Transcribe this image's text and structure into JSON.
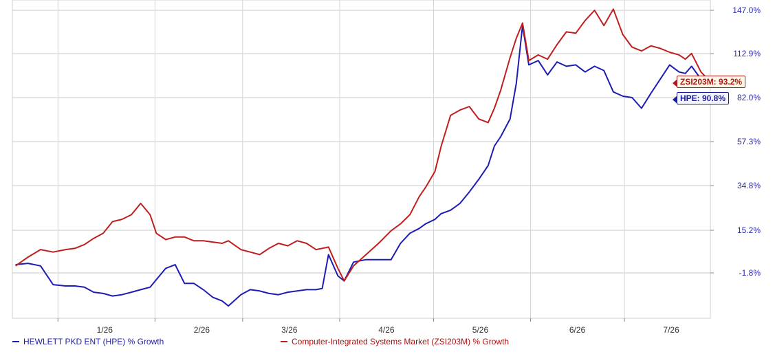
{
  "chart_data": {
    "type": "line",
    "x_start": "2025-12-17",
    "x_end": "2026-07-28",
    "xticks": [
      {
        "date": "2026-01-01",
        "label": "1/26"
      },
      {
        "date": "2026-02-01",
        "label": "2/26"
      },
      {
        "date": "2026-03-01",
        "label": "3/26"
      },
      {
        "date": "2026-04-01",
        "label": "4/26"
      },
      {
        "date": "2026-05-01",
        "label": "5/26"
      },
      {
        "date": "2026-06-01",
        "label": "6/26"
      },
      {
        "date": "2026-07-01",
        "label": "7/26"
      }
    ],
    "yticks": [
      {
        "value": -1.8,
        "label": "-1.8%"
      },
      {
        "value": 15.2,
        "label": "15.2%"
      },
      {
        "value": 34.8,
        "label": "34.8%"
      },
      {
        "value": 57.3,
        "label": "57.3%"
      },
      {
        "value": 82.0,
        "label": "82.0%"
      },
      {
        "value": 112.9,
        "label": "112.9%"
      },
      {
        "value": 147.0,
        "label": "147.0%"
      }
    ],
    "grid": true,
    "series": [
      {
        "name": "HEWLETT PKD ENT (HPE) % Growth",
        "ticker": "HPE",
        "color": "#1c1cb4",
        "end_label": "HPE: 90.8%",
        "points": [
          [
            "2025-12-18",
            1.5
          ],
          [
            "2025-12-22",
            2.0
          ],
          [
            "2025-12-26",
            1.0
          ],
          [
            "2025-12-30",
            -6.5
          ],
          [
            "2026-01-03",
            -7.0
          ],
          [
            "2026-01-06",
            -7.0
          ],
          [
            "2026-01-09",
            -7.5
          ],
          [
            "2026-01-12",
            -9.5
          ],
          [
            "2026-01-15",
            -10.0
          ],
          [
            "2026-01-18",
            -11.0
          ],
          [
            "2026-01-21",
            -10.5
          ],
          [
            "2026-01-24",
            -9.5
          ],
          [
            "2026-01-27",
            -8.5
          ],
          [
            "2026-01-30",
            -7.5
          ],
          [
            "2026-02-01",
            -4.5
          ],
          [
            "2026-02-04",
            0.0
          ],
          [
            "2026-02-07",
            1.5
          ],
          [
            "2026-02-10",
            -6.0
          ],
          [
            "2026-02-13",
            -6.0
          ],
          [
            "2026-02-16",
            -8.5
          ],
          [
            "2026-02-19",
            -11.5
          ],
          [
            "2026-02-22",
            -13.0
          ],
          [
            "2026-02-24",
            -15.0
          ],
          [
            "2026-02-28",
            -10.5
          ],
          [
            "2026-03-03",
            -8.5
          ],
          [
            "2026-03-06",
            -9.0
          ],
          [
            "2026-03-09",
            -10.0
          ],
          [
            "2026-03-12",
            -10.5
          ],
          [
            "2026-03-15",
            -9.5
          ],
          [
            "2026-03-18",
            -9.0
          ],
          [
            "2026-03-21",
            -8.5
          ],
          [
            "2026-03-24",
            -8.5
          ],
          [
            "2026-03-26",
            -8.0
          ],
          [
            "2026-03-28",
            5.5
          ],
          [
            "2026-03-31",
            -3.0
          ],
          [
            "2026-04-02",
            -5.0
          ],
          [
            "2026-04-05",
            2.5
          ],
          [
            "2026-04-09",
            3.5
          ],
          [
            "2026-04-13",
            3.5
          ],
          [
            "2026-04-17",
            3.5
          ],
          [
            "2026-04-20",
            10.0
          ],
          [
            "2026-04-23",
            14.0
          ],
          [
            "2026-04-26",
            16.0
          ],
          [
            "2026-04-28",
            18.0
          ],
          [
            "2026-05-01",
            20.0
          ],
          [
            "2026-05-03",
            22.5
          ],
          [
            "2026-05-06",
            24.0
          ],
          [
            "2026-05-09",
            27.0
          ],
          [
            "2026-05-12",
            32.0
          ],
          [
            "2026-05-15",
            38.0
          ],
          [
            "2026-05-18",
            45.0
          ],
          [
            "2026-05-20",
            55.0
          ],
          [
            "2026-05-22",
            60.0
          ],
          [
            "2026-05-25",
            70.0
          ],
          [
            "2026-05-27",
            92.0
          ],
          [
            "2026-05-29",
            135.0
          ],
          [
            "2026-05-31",
            105.0
          ],
          [
            "2026-06-03",
            108.0
          ],
          [
            "2026-06-06",
            98.0
          ],
          [
            "2026-06-09",
            107.0
          ],
          [
            "2026-06-12",
            104.0
          ],
          [
            "2026-06-15",
            105.0
          ],
          [
            "2026-06-18",
            100.0
          ],
          [
            "2026-06-21",
            104.0
          ],
          [
            "2026-06-24",
            101.0
          ],
          [
            "2026-06-27",
            86.0
          ],
          [
            "2026-06-30",
            83.0
          ],
          [
            "2026-07-03",
            82.0
          ],
          [
            "2026-07-06",
            76.0
          ],
          [
            "2026-07-09",
            85.0
          ],
          [
            "2026-07-12",
            95.0
          ],
          [
            "2026-07-15",
            105.0
          ],
          [
            "2026-07-18",
            100.0
          ],
          [
            "2026-07-20",
            99.0
          ],
          [
            "2026-07-22",
            104.0
          ],
          [
            "2026-07-25",
            95.0
          ],
          [
            "2026-07-28",
            90.8
          ]
        ]
      },
      {
        "name": "Computer-Integrated Systems Market (ZSI203M) % Growth",
        "ticker": "ZSI203M",
        "color": "#c01e1e",
        "end_label": "ZSI203M: 93.2%",
        "points": [
          [
            "2025-12-18",
            1.0
          ],
          [
            "2025-12-22",
            4.5
          ],
          [
            "2025-12-26",
            7.5
          ],
          [
            "2025-12-30",
            6.5
          ],
          [
            "2026-01-03",
            7.5
          ],
          [
            "2026-01-06",
            8.0
          ],
          [
            "2026-01-09",
            9.5
          ],
          [
            "2026-01-12",
            12.0
          ],
          [
            "2026-01-15",
            14.0
          ],
          [
            "2026-01-18",
            19.0
          ],
          [
            "2026-01-21",
            20.0
          ],
          [
            "2026-01-24",
            22.0
          ],
          [
            "2026-01-27",
            27.0
          ],
          [
            "2026-01-30",
            22.0
          ],
          [
            "2026-02-01",
            14.0
          ],
          [
            "2026-02-04",
            11.5
          ],
          [
            "2026-02-07",
            12.5
          ],
          [
            "2026-02-10",
            12.5
          ],
          [
            "2026-02-13",
            11.0
          ],
          [
            "2026-02-16",
            11.0
          ],
          [
            "2026-02-19",
            10.5
          ],
          [
            "2026-02-22",
            10.0
          ],
          [
            "2026-02-24",
            11.0
          ],
          [
            "2026-02-28",
            7.5
          ],
          [
            "2026-03-03",
            6.5
          ],
          [
            "2026-03-06",
            5.5
          ],
          [
            "2026-03-09",
            8.0
          ],
          [
            "2026-03-12",
            10.0
          ],
          [
            "2026-03-15",
            9.0
          ],
          [
            "2026-03-18",
            11.0
          ],
          [
            "2026-03-21",
            10.0
          ],
          [
            "2026-03-24",
            7.5
          ],
          [
            "2026-03-26",
            8.0
          ],
          [
            "2026-03-28",
            8.5
          ],
          [
            "2026-03-31",
            0.0
          ],
          [
            "2026-04-02",
            -5.0
          ],
          [
            "2026-04-05",
            1.0
          ],
          [
            "2026-04-09",
            5.5
          ],
          [
            "2026-04-13",
            10.0
          ],
          [
            "2026-04-17",
            15.0
          ],
          [
            "2026-04-20",
            18.0
          ],
          [
            "2026-04-23",
            22.0
          ],
          [
            "2026-04-26",
            30.0
          ],
          [
            "2026-04-28",
            34.0
          ],
          [
            "2026-05-01",
            42.0
          ],
          [
            "2026-05-03",
            55.0
          ],
          [
            "2026-05-06",
            72.0
          ],
          [
            "2026-05-09",
            75.0
          ],
          [
            "2026-05-12",
            77.0
          ],
          [
            "2026-05-15",
            70.0
          ],
          [
            "2026-05-18",
            68.0
          ],
          [
            "2026-05-20",
            76.0
          ],
          [
            "2026-05-22",
            87.0
          ],
          [
            "2026-05-25",
            110.0
          ],
          [
            "2026-05-27",
            125.0
          ],
          [
            "2026-05-29",
            137.0
          ],
          [
            "2026-05-31",
            108.0
          ],
          [
            "2026-06-03",
            112.0
          ],
          [
            "2026-06-06",
            109.0
          ],
          [
            "2026-06-09",
            120.0
          ],
          [
            "2026-06-12",
            130.0
          ],
          [
            "2026-06-15",
            129.0
          ],
          [
            "2026-06-18",
            139.0
          ],
          [
            "2026-06-21",
            147.0
          ],
          [
            "2026-06-24",
            135.0
          ],
          [
            "2026-06-27",
            148.0
          ],
          [
            "2026-06-30",
            128.0
          ],
          [
            "2026-07-03",
            118.0
          ],
          [
            "2026-07-06",
            115.0
          ],
          [
            "2026-07-09",
            119.0
          ],
          [
            "2026-07-12",
            117.0
          ],
          [
            "2026-07-15",
            114.0
          ],
          [
            "2026-07-18",
            112.0
          ],
          [
            "2026-07-20",
            109.0
          ],
          [
            "2026-07-22",
            113.0
          ],
          [
            "2026-07-25",
            100.0
          ],
          [
            "2026-07-28",
            93.2
          ]
        ]
      }
    ]
  }
}
